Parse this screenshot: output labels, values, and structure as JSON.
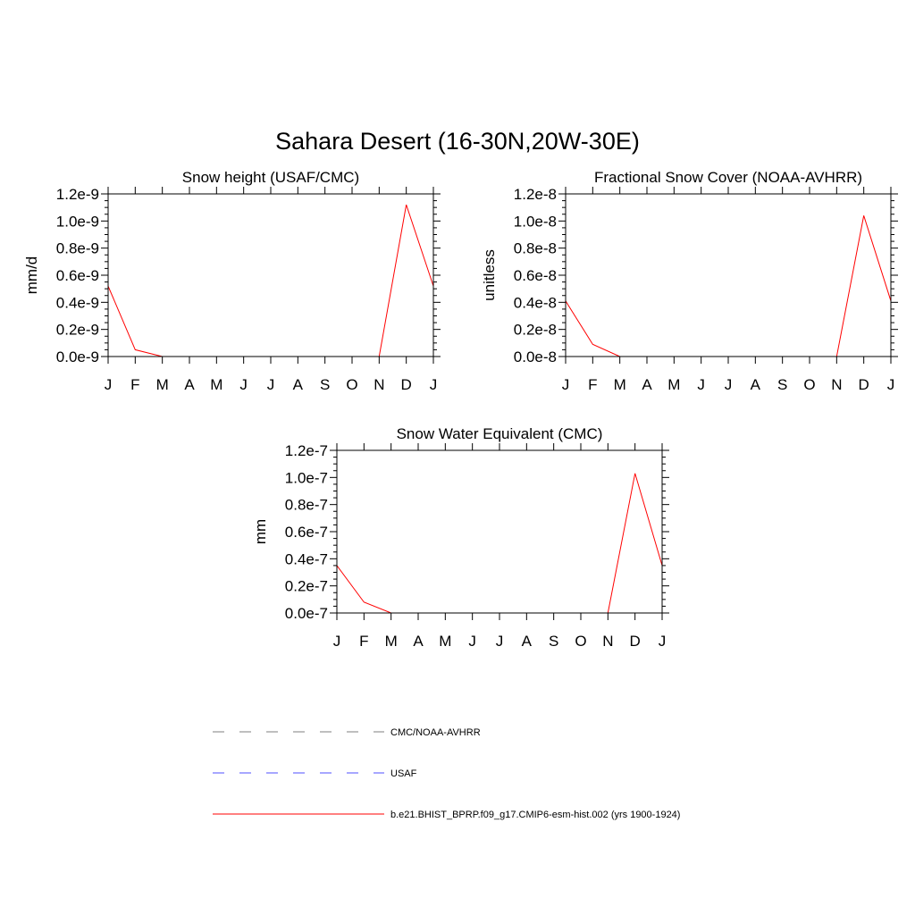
{
  "title": "Sahara Desert (16-30N,20W-30E)",
  "legend": {
    "placement": "bottom",
    "entries": [
      {
        "label": "CMC/NOAA-AVHRR",
        "color": "#7f7f7f",
        "dash": "dashed"
      },
      {
        "label": "USAF",
        "color": "#4f4fff",
        "dash": "dashed"
      },
      {
        "label": "b.e21.BHIST_BPRP.f09_g17.CMIP6-esm-hist.002 (yrs 1900-1924)",
        "color": "#ff0000",
        "dash": "solid"
      }
    ]
  },
  "chart_data": [
    {
      "type": "line",
      "title": "Snow height (USAF/CMC)",
      "ylabel": "mm/d",
      "categories": [
        "J",
        "F",
        "M",
        "A",
        "M",
        "J",
        "J",
        "A",
        "S",
        "O",
        "N",
        "D",
        "J"
      ],
      "yticks": [
        "0.0e-9",
        "0.2e-9",
        "0.4e-9",
        "0.6e-9",
        "0.8e-9",
        "1.0e-9",
        "1.2e-9"
      ],
      "ylim": [
        0,
        1.2e-09
      ],
      "series": [
        {
          "name": "b.e21.BHIST_BPRP.f09_g17.CMIP6-esm-hist.002 (yrs 1900-1924)",
          "color": "#ff0000",
          "values": [
            5.2e-10,
            5e-11,
            0,
            0,
            0,
            0,
            0,
            0,
            0,
            0,
            0,
            1.12e-09,
            5.2e-10
          ]
        },
        {
          "name": "CMC/NOAA-AVHRR",
          "color": "#7f7f7f",
          "values": [
            0,
            0,
            0,
            0,
            0,
            0,
            0,
            0,
            0,
            0,
            0,
            0,
            0
          ]
        },
        {
          "name": "USAF",
          "color": "#4f4fff",
          "values": [
            0,
            0,
            0,
            0,
            0,
            0,
            0,
            0,
            0,
            0,
            0,
            0,
            0
          ]
        }
      ]
    },
    {
      "type": "line",
      "title": "Fractional Snow Cover (NOAA-AVHRR)",
      "ylabel": "unitless",
      "categories": [
        "J",
        "F",
        "M",
        "A",
        "M",
        "J",
        "J",
        "A",
        "S",
        "O",
        "N",
        "D",
        "J"
      ],
      "yticks": [
        "0.0e-8",
        "0.2e-8",
        "0.4e-8",
        "0.6e-8",
        "0.8e-8",
        "1.0e-8",
        "1.2e-8"
      ],
      "ylim": [
        0,
        1.2e-08
      ],
      "series": [
        {
          "name": "b.e21.BHIST_BPRP.f09_g17.CMIP6-esm-hist.002 (yrs 1900-1924)",
          "color": "#ff0000",
          "values": [
            4.1e-09,
            9e-10,
            0,
            0,
            0,
            0,
            0,
            0,
            0,
            0,
            0,
            1.04e-08,
            4.1e-09
          ]
        },
        {
          "name": "CMC/NOAA-AVHRR",
          "color": "#7f7f7f",
          "values": [
            0,
            0,
            0,
            0,
            0,
            0,
            0,
            0,
            0,
            0,
            0,
            0,
            0
          ]
        }
      ]
    },
    {
      "type": "line",
      "title": "Snow Water Equivalent (CMC)",
      "ylabel": "mm",
      "categories": [
        "J",
        "F",
        "M",
        "A",
        "M",
        "J",
        "J",
        "A",
        "S",
        "O",
        "N",
        "D",
        "J"
      ],
      "yticks": [
        "0.0e-7",
        "0.2e-7",
        "0.4e-7",
        "0.6e-7",
        "0.8e-7",
        "1.0e-7",
        "1.2e-7"
      ],
      "ylim": [
        0,
        1.2e-07
      ],
      "series": [
        {
          "name": "b.e21.BHIST_BPRP.f09_g17.CMIP6-esm-hist.002 (yrs 1900-1924)",
          "color": "#ff0000",
          "values": [
            3.5e-08,
            8e-09,
            0,
            0,
            0,
            0,
            0,
            0,
            0,
            0,
            0,
            1.03e-07,
            3.5e-08
          ]
        },
        {
          "name": "CMC/NOAA-AVHRR",
          "color": "#7f7f7f",
          "values": [
            0,
            0,
            0,
            0,
            0,
            0,
            0,
            0,
            0,
            0,
            0,
            0,
            0
          ]
        }
      ]
    }
  ]
}
